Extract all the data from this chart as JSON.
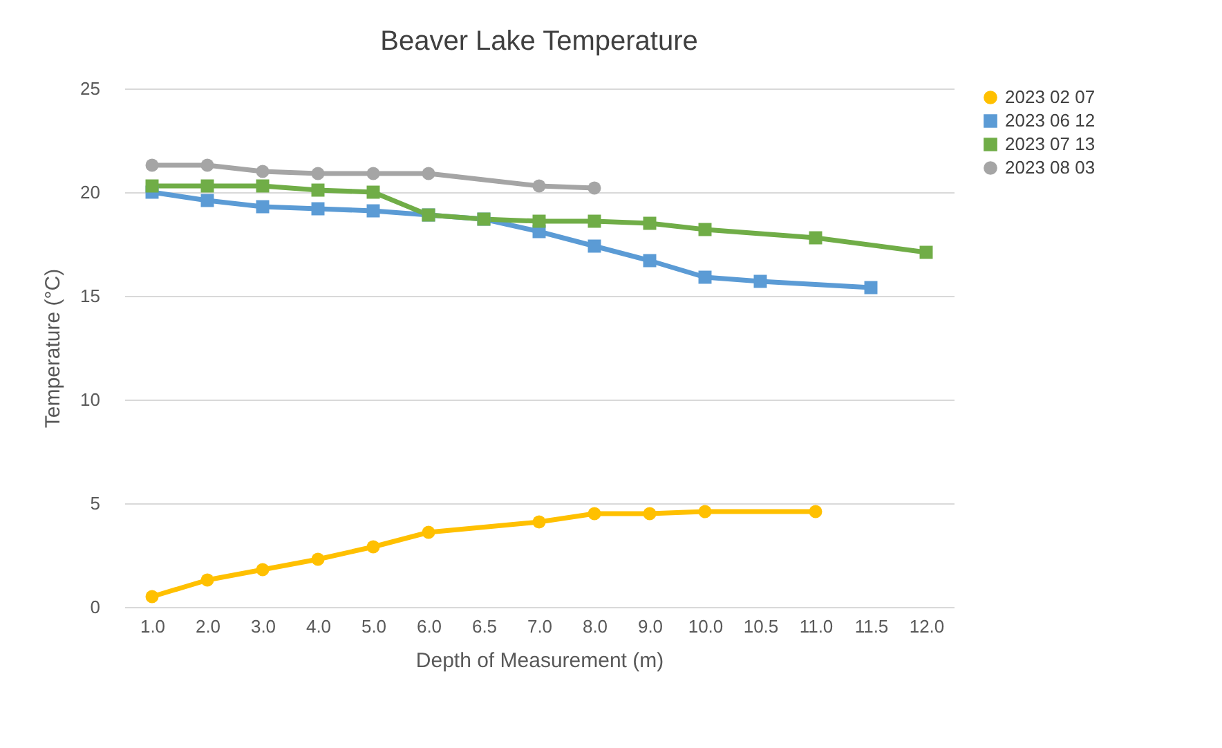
{
  "chart_data": {
    "type": "line",
    "title": "Beaver Lake Temperature",
    "xlabel": "Depth of Measurement (m)",
    "ylabel": "Temperature (°C)",
    "categories": [
      "1.0",
      "2.0",
      "3.0",
      "4.0",
      "5.0",
      "6.0",
      "6.5",
      "7.0",
      "8.0",
      "9.0",
      "10.0",
      "10.5",
      "11.0",
      "11.5",
      "12.0"
    ],
    "series": [
      {
        "name": "2023 02 07",
        "color": "#ffc000",
        "marker": "circle",
        "values": [
          0.5,
          1.3,
          1.8,
          2.3,
          2.9,
          3.6,
          null,
          4.1,
          4.5,
          4.5,
          4.6,
          null,
          4.6,
          null,
          null
        ]
      },
      {
        "name": "2023 06 12",
        "color": "#5b9bd5",
        "marker": "square",
        "values": [
          20.0,
          19.6,
          19.3,
          19.2,
          19.1,
          18.9,
          18.7,
          18.1,
          17.4,
          16.7,
          15.9,
          15.7,
          null,
          15.4,
          null
        ]
      },
      {
        "name": "2023 07 13",
        "color": "#70ad47",
        "marker": "square",
        "values": [
          20.3,
          20.3,
          20.3,
          20.1,
          20.0,
          18.9,
          18.7,
          18.6,
          18.6,
          18.5,
          18.2,
          null,
          17.8,
          null,
          17.1
        ]
      },
      {
        "name": "2023 08 03",
        "color": "#a5a5a5",
        "marker": "circle",
        "values": [
          21.3,
          21.3,
          21.0,
          20.9,
          20.9,
          20.9,
          null,
          20.3,
          20.2,
          null,
          null,
          null,
          null,
          null,
          null
        ]
      }
    ],
    "ylim": [
      0,
      25
    ],
    "yticks": [
      0,
      5,
      10,
      15,
      20,
      25
    ],
    "grid": "y",
    "legend": "right",
    "line_style": "solid"
  }
}
